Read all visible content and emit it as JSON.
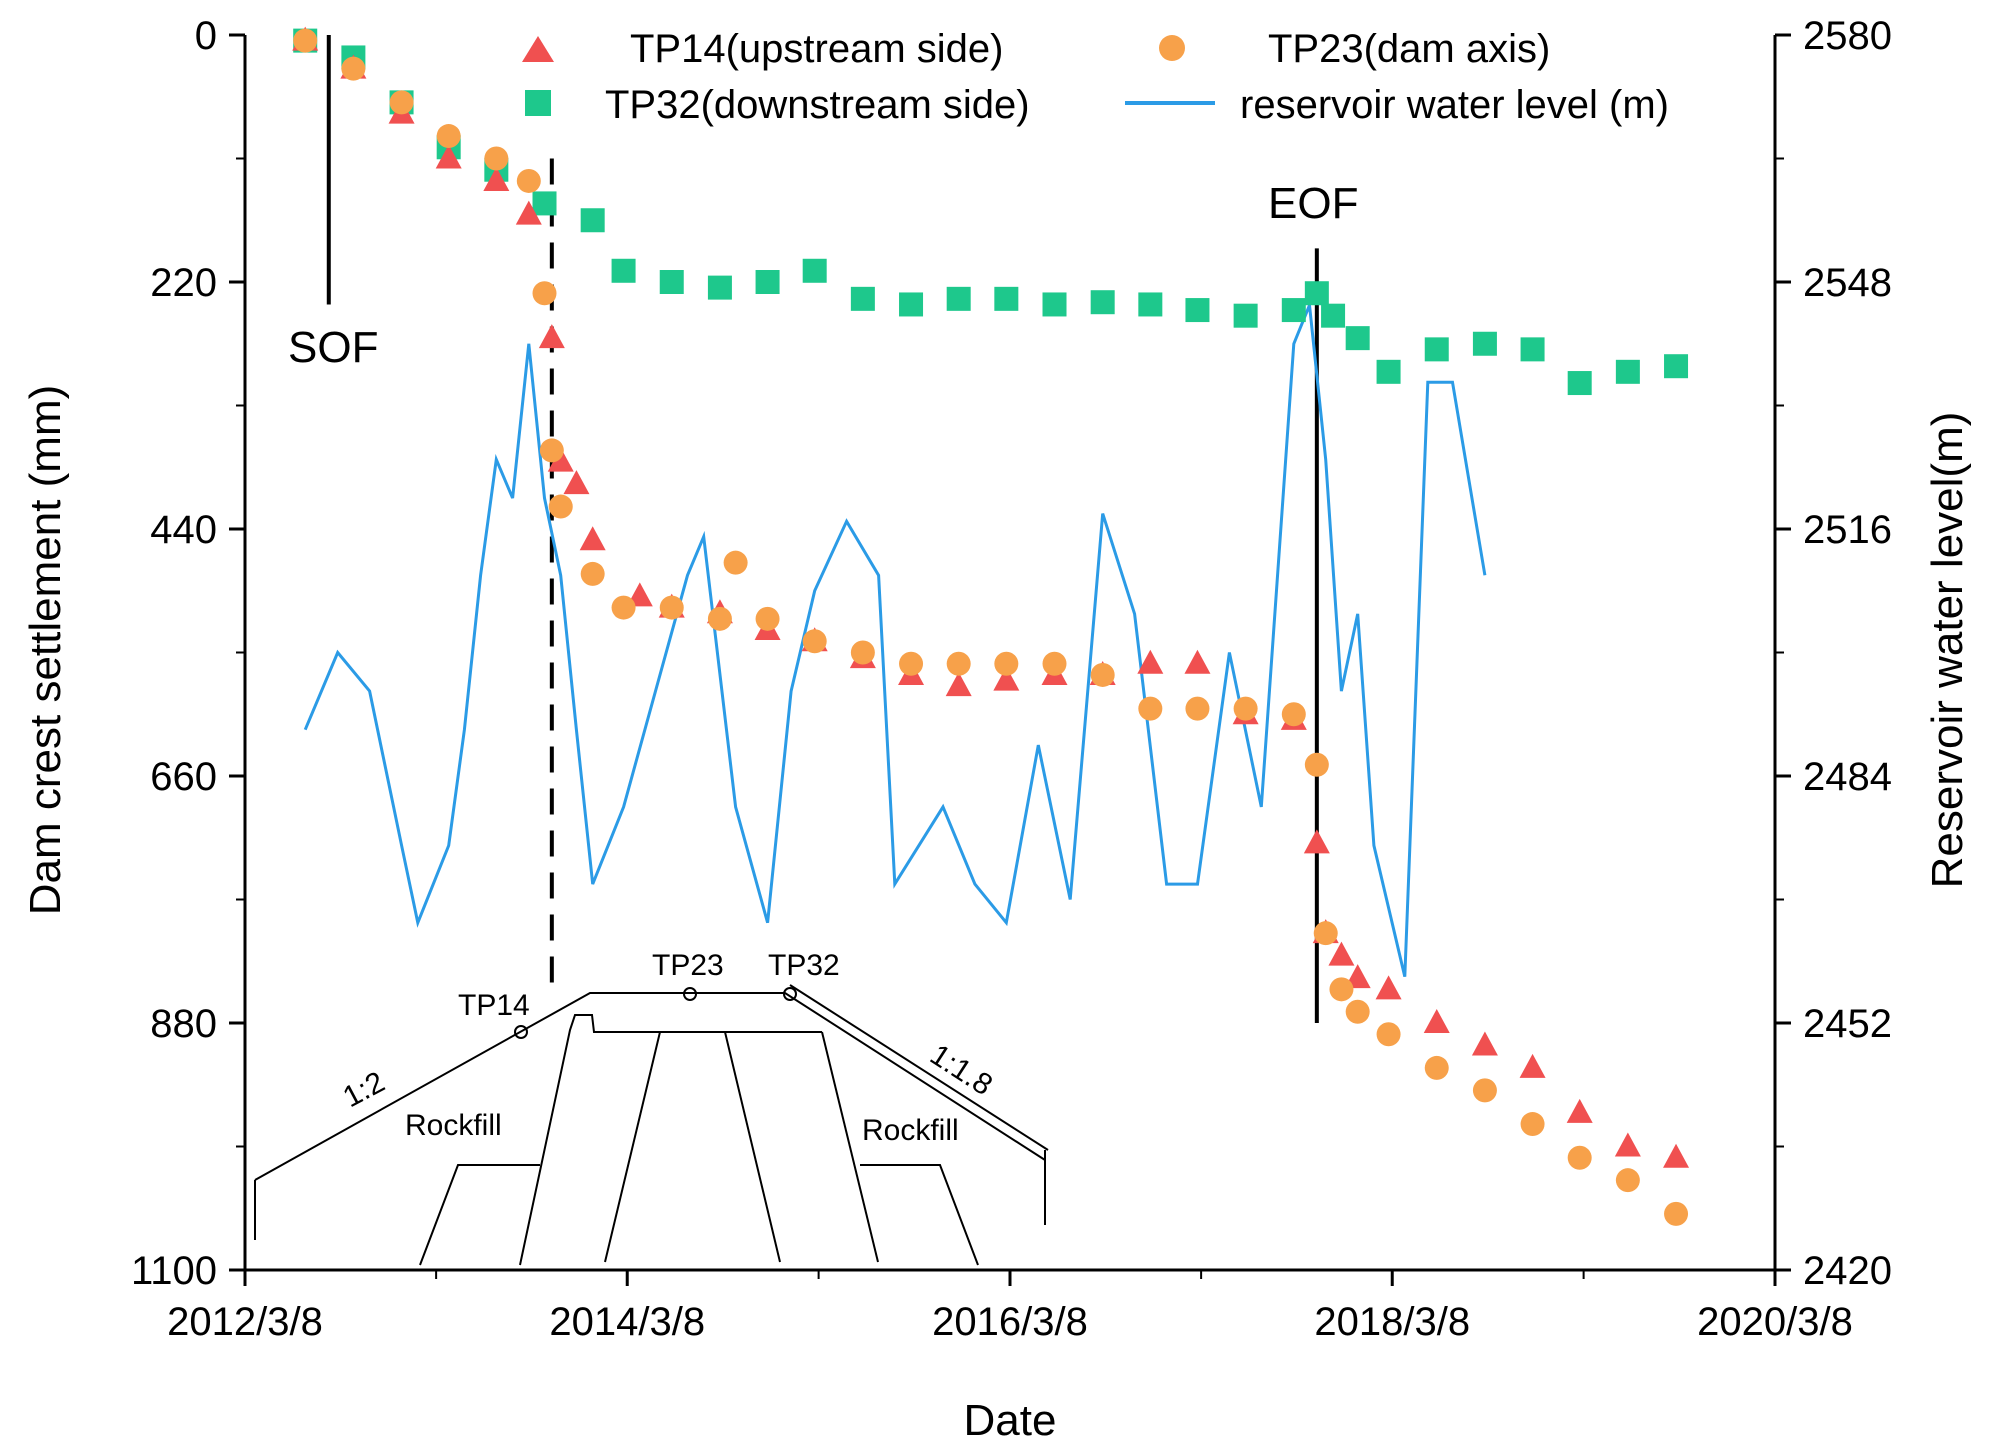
{
  "chart_data": {
    "type": "scatter",
    "xlabel": "Date",
    "ylabel_left": "Dam crest settlement (mm)",
    "ylabel_right": "Reservoir water level(m)",
    "x_ticks": [
      "2012/3/8",
      "2014/3/8",
      "2016/3/8",
      "2018/3/8",
      "2020/3/8"
    ],
    "y_left_ticks": [
      "0",
      "220",
      "440",
      "660",
      "880",
      "1100"
    ],
    "y_right_ticks": [
      "2580",
      "2548",
      "2516",
      "2484",
      "2452",
      "2420"
    ],
    "y_left_range": [
      0,
      1100
    ],
    "y_left_inverted": true,
    "y_right_range": [
      2420,
      2580
    ],
    "x_range": [
      "2012/3/8",
      "2020/3/8"
    ],
    "legend_position": "top",
    "colors": {
      "tp14": "#f05050",
      "tp23": "#f7a14a",
      "tp32": "#1ec88c",
      "water": "#2b9be6",
      "axis": "#000000"
    },
    "series": [
      {
        "name": "TP14(upstream side)",
        "marker": "triangle",
        "x": [
          "2012/7/1",
          "2012/10/1",
          "2013/1/1",
          "2013/4/1",
          "2013/7/1",
          "2013/9/1",
          "2013/10/15",
          "2013/11/1",
          "2013/12/1",
          "2014/1/1",
          "2014/4/1",
          "2014/6/1",
          "2014/9/1",
          "2014/12/1",
          "2015/3/1",
          "2015/6/1",
          "2015/9/1",
          "2015/12/1",
          "2016/3/1",
          "2016/6/1",
          "2016/9/1",
          "2016/12/1",
          "2017/3/1",
          "2017/6/1",
          "2017/9/1",
          "2017/10/15",
          "2017/11/1",
          "2017/12/1",
          "2018/1/1",
          "2018/3/1",
          "2018/6/1",
          "2018/9/1",
          "2018/12/1",
          "2019/3/1",
          "2019/6/1",
          "2019/9/1"
        ],
        "y": [
          5,
          30,
          70,
          110,
          130,
          160,
          270,
          380,
          400,
          450,
          500,
          510,
          515,
          530,
          540,
          555,
          570,
          580,
          575,
          570,
          570,
          560,
          560,
          605,
          610,
          720,
          800,
          820,
          840,
          850,
          880,
          900,
          920,
          960,
          990,
          1000
        ]
      },
      {
        "name": "TP23(dam axis)",
        "marker": "circle",
        "x": [
          "2012/7/1",
          "2012/10/1",
          "2013/1/1",
          "2013/4/1",
          "2013/7/1",
          "2013/9/1",
          "2013/10/1",
          "2013/10/15",
          "2013/11/1",
          "2014/1/1",
          "2014/3/1",
          "2014/6/1",
          "2014/9/1",
          "2014/10/1",
          "2014/12/1",
          "2015/3/1",
          "2015/6/1",
          "2015/9/1",
          "2015/12/1",
          "2016/3/1",
          "2016/6/1",
          "2016/9/1",
          "2016/12/1",
          "2017/3/1",
          "2017/6/1",
          "2017/9/1",
          "2017/10/15",
          "2017/11/1",
          "2017/12/1",
          "2018/1/1",
          "2018/3/1",
          "2018/6/1",
          "2018/9/1",
          "2018/12/1",
          "2019/3/1",
          "2019/6/1",
          "2019/9/1"
        ],
        "y": [
          5,
          30,
          60,
          90,
          110,
          130,
          230,
          370,
          420,
          480,
          510,
          510,
          520,
          470,
          520,
          540,
          550,
          560,
          560,
          560,
          560,
          570,
          600,
          600,
          600,
          605,
          650,
          800,
          850,
          870,
          890,
          920,
          940,
          970,
          1000,
          1020,
          1050
        ]
      },
      {
        "name": "TP32(downstream side)",
        "marker": "square",
        "x": [
          "2012/7/1",
          "2012/10/1",
          "2013/1/1",
          "2013/4/1",
          "2013/7/1",
          "2013/10/1",
          "2014/1/1",
          "2014/3/1",
          "2014/6/1",
          "2014/9/1",
          "2014/12/1",
          "2015/3/1",
          "2015/6/1",
          "2015/9/1",
          "2015/12/1",
          "2016/3/1",
          "2016/6/1",
          "2016/9/1",
          "2016/12/1",
          "2017/3/1",
          "2017/6/1",
          "2017/9/1",
          "2017/10/15",
          "2017/11/15",
          "2018/1/1",
          "2018/3/1",
          "2018/6/1",
          "2018/9/1",
          "2018/12/1",
          "2019/3/1",
          "2019/6/1",
          "2019/9/1"
        ],
        "y": [
          5,
          20,
          60,
          100,
          120,
          150,
          165,
          210,
          220,
          225,
          220,
          210,
          235,
          240,
          235,
          235,
          240,
          238,
          240,
          245,
          250,
          245,
          230,
          250,
          270,
          300,
          280,
          275,
          280,
          310,
          300,
          295
        ]
      },
      {
        "name": "reservoir water level (m)",
        "marker": "line",
        "axis": "right",
        "x": [
          "2012/7/1",
          "2012/9/1",
          "2012/11/1",
          "2013/1/1",
          "2013/2/1",
          "2013/4/1",
          "2013/5/1",
          "2013/6/1",
          "2013/7/1",
          "2013/8/1",
          "2013/9/1",
          "2013/10/1",
          "2013/11/1",
          "2013/12/1",
          "2014/1/1",
          "2014/3/1",
          "2014/5/1",
          "2014/7/1",
          "2014/8/1",
          "2014/10/1",
          "2014/12/1",
          "2015/1/15",
          "2015/3/1",
          "2015/5/1",
          "2015/7/1",
          "2015/8/1",
          "2015/11/1",
          "2016/1/1",
          "2016/3/1",
          "2016/5/1",
          "2016/7/1",
          "2016/9/1",
          "2016/11/1",
          "2017/1/1",
          "2017/3/1",
          "2017/5/1",
          "2017/7/1",
          "2017/9/1",
          "2017/10/1",
          "2017/11/1",
          "2017/12/1",
          "2018/1/1",
          "2018/2/1",
          "2018/4/1",
          "2018/5/15",
          "2018/7/1",
          "2018/9/1"
        ],
        "y": [
          2490,
          2500,
          2495,
          2475,
          2465,
          2475,
          2490,
          2510,
          2525,
          2520,
          2540,
          2520,
          2510,
          2490,
          2470,
          2480,
          2495,
          2510,
          2515,
          2480,
          2465,
          2495,
          2508,
          2517,
          2510,
          2470,
          2480,
          2470,
          2465,
          2488,
          2468,
          2518,
          2505,
          2470,
          2470,
          2500,
          2480,
          2540,
          2545,
          2525,
          2495,
          2505,
          2475,
          2458,
          2535,
          2535,
          2510
        ]
      }
    ],
    "annotations": [
      {
        "label": "SOF",
        "x": "2012/8/15",
        "y_top": 0,
        "y_bottom": 240,
        "style": "solid"
      },
      {
        "label": "",
        "x": "2013/10/15",
        "y_top": 110,
        "y_bottom": 850,
        "style": "dashed"
      },
      {
        "label": "EOF",
        "x": "2017/10/15",
        "y_top": 190,
        "y_bottom": 880,
        "style": "solid"
      }
    ],
    "inset_labels": {
      "tp14": "TP14",
      "tp23": "TP23",
      "tp32": "TP32",
      "slope_left": "1:2",
      "slope_right": "1:1.8",
      "rockfill_left": "Rockfill",
      "rockfill_right": "Rockfill"
    }
  }
}
